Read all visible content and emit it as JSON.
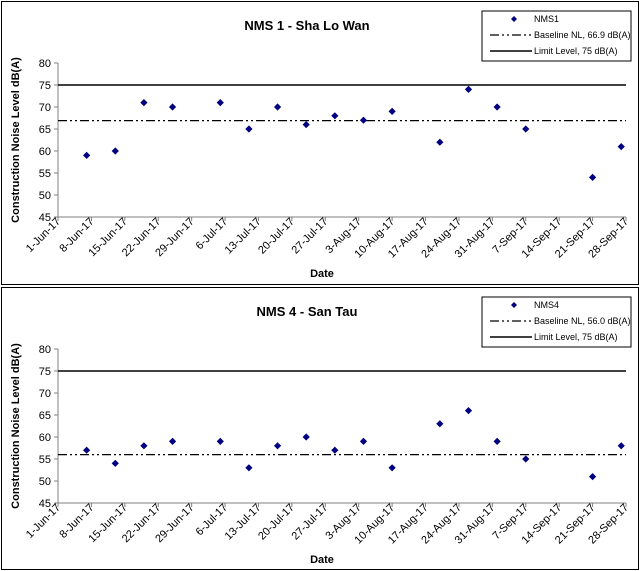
{
  "chart_data": [
    {
      "type": "scatter",
      "title": "NMS 1 - Sha Lo Wan",
      "xlabel": "Date",
      "ylabel": "Construction Noise Level  dB(A)",
      "ylim": [
        45,
        80
      ],
      "yticks": [
        "45",
        "50",
        "55",
        "60",
        "65",
        "70",
        "75",
        "80"
      ],
      "xlim": [
        "2017-06-01",
        "2017-09-28"
      ],
      "xticks": [
        "1-Jun-17",
        "8-Jun-17",
        "15-Jun-17",
        "22-Jun-17",
        "29-Jun-17",
        "6-Jul-17",
        "13-Jul-17",
        "20-Jul-17",
        "27-Jul-17",
        "3-Aug-17",
        "10-Aug-17",
        "17-Aug-17",
        "24-Aug-17",
        "31-Aug-17",
        "7-Sep-17",
        "14-Sep-17",
        "21-Sep-17",
        "28-Sep-17"
      ],
      "grid": false,
      "legend_position": "top-right",
      "series": [
        {
          "name": "NMS1",
          "color": "#000080",
          "marker": "diamond",
          "x": [
            "2017-06-07",
            "2017-06-13",
            "2017-06-19",
            "2017-06-25",
            "2017-07-05",
            "2017-07-11",
            "2017-07-17",
            "2017-07-23",
            "2017-07-29",
            "2017-08-04",
            "2017-08-10",
            "2017-08-20",
            "2017-08-26",
            "2017-09-01",
            "2017-09-07",
            "2017-09-21",
            "2017-09-27"
          ],
          "values": [
            59,
            60,
            71,
            70,
            71,
            65,
            70,
            66,
            68,
            67,
            69,
            62,
            74,
            70,
            65,
            54,
            61
          ]
        }
      ],
      "reference_lines": [
        {
          "name": "Baseline NL, 66.9 dB(A)",
          "value": 66.9,
          "style": "dash-dot-dot",
          "color": "#000000"
        },
        {
          "name": "Limit Level, 75 dB(A)",
          "value": 75,
          "style": "solid",
          "color": "#000000"
        }
      ]
    },
    {
      "type": "scatter",
      "title": "NMS 4 - San Tau",
      "xlabel": "Date",
      "ylabel": "Construction Noise Level  dB(A)",
      "ylim": [
        45,
        80
      ],
      "yticks": [
        "45",
        "50",
        "55",
        "60",
        "65",
        "70",
        "75",
        "80"
      ],
      "xlim": [
        "2017-06-01",
        "2017-09-28"
      ],
      "xticks": [
        "1-Jun-17",
        "8-Jun-17",
        "15-Jun-17",
        "22-Jun-17",
        "29-Jun-17",
        "6-Jul-17",
        "13-Jul-17",
        "20-Jul-17",
        "27-Jul-17",
        "3-Aug-17",
        "10-Aug-17",
        "17-Aug-17",
        "24-Aug-17",
        "31-Aug-17",
        "7-Sep-17",
        "14-Sep-17",
        "21-Sep-17",
        "28-Sep-17"
      ],
      "grid": false,
      "legend_position": "top-right",
      "series": [
        {
          "name": "NMS4",
          "color": "#000080",
          "marker": "diamond",
          "x": [
            "2017-06-07",
            "2017-06-13",
            "2017-06-19",
            "2017-06-25",
            "2017-07-05",
            "2017-07-11",
            "2017-07-17",
            "2017-07-23",
            "2017-07-29",
            "2017-08-04",
            "2017-08-10",
            "2017-08-20",
            "2017-08-26",
            "2017-09-01",
            "2017-09-07",
            "2017-09-21",
            "2017-09-27"
          ],
          "values": [
            57,
            54,
            58,
            59,
            59,
            53,
            58,
            60,
            57,
            59,
            53,
            63,
            66,
            59,
            55,
            51,
            58
          ]
        }
      ],
      "reference_lines": [
        {
          "name": "Baseline NL, 56.0 dB(A)",
          "value": 56.0,
          "style": "dash-dot-dot",
          "color": "#000000"
        },
        {
          "name": "Limit Level, 75 dB(A)",
          "value": 75,
          "style": "solid",
          "color": "#000000"
        }
      ]
    }
  ]
}
